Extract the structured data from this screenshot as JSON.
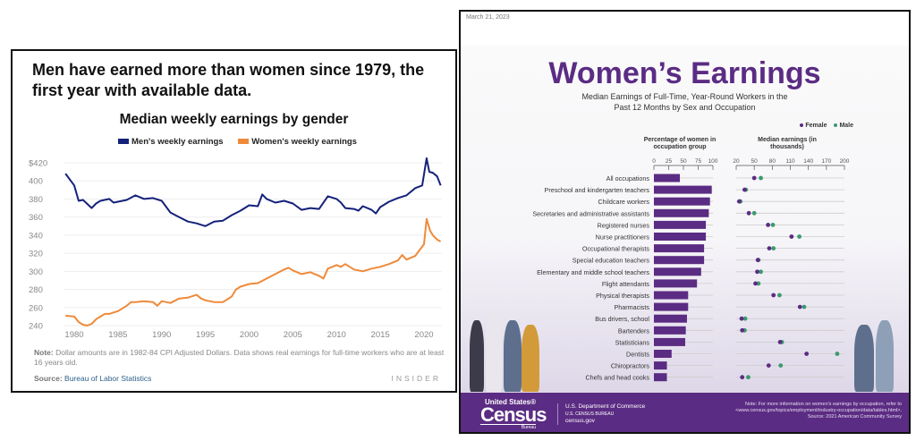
{
  "left_panel": {
    "headline": "Men have earned more than women since 1979, the first year with available data.",
    "note_label": "Note:",
    "note_text": "Dollar amounts are in 1982-84 CPI Adjusted Dollars. Data shows real earnings for full-time workers who are at least 16 years old.",
    "source_label": "Source:",
    "source_text": "Bureau of Labor Statistics",
    "brand": "INSIDER"
  },
  "right_panel": {
    "date": "March 21, 2023",
    "title": "Women’s Earnings",
    "subtitle_line1": "Median Earnings of Full-Time, Year-Round Workers in the",
    "subtitle_line2": "Past 12 Months by Sex and Occupation",
    "footer": {
      "logo_top": "United States®",
      "logo_main": "Census",
      "logo_bottom": "Bureau",
      "dept_line1": "U.S. Department of Commerce",
      "dept_line2": "U.S. CENSUS BUREAU",
      "dept_line3": "census.gov",
      "note": "Note: For more information on women's earnings by occupation, refer to <www.census.gov/topics/employment/industry-occupation/data/tables.html>.",
      "source": "Source: 2021 American Community Survey"
    }
  },
  "colors": {
    "men": "#14217a",
    "women": "#ee8a3a",
    "female": "#5b2c83",
    "male": "#3a9a6e",
    "bar": "#5b2c83"
  },
  "chart_data": [
    {
      "type": "line",
      "title": "Median weekly earnings by gender",
      "xlabel": "",
      "ylabel": "",
      "xlim": [
        1979,
        2022
      ],
      "ylim": [
        235,
        425
      ],
      "xticks": [
        1980,
        1985,
        1990,
        1995,
        2000,
        2005,
        2010,
        2015,
        2020
      ],
      "yticks": [
        240,
        260,
        280,
        300,
        320,
        340,
        360,
        380,
        400,
        420
      ],
      "ytick_labels": [
        "240",
        "260",
        "280",
        "300",
        "320",
        "340",
        "360",
        "380",
        "400",
        "$420"
      ],
      "grid": true,
      "legend": "top",
      "series": [
        {
          "name": "Men's weekly earnings",
          "x": [
            1979,
            1980,
            1980.5,
            1981,
            1982,
            1982.5,
            1983,
            1984,
            1984.5,
            1985,
            1986,
            1987,
            1988,
            1989,
            1990,
            1991,
            1992,
            1993,
            1994,
            1995,
            1996,
            1997,
            1998,
            1999,
            2000,
            2001,
            2001.5,
            2002,
            2003,
            2004,
            2005,
            2006,
            2007,
            2008,
            2009,
            2010,
            2010.5,
            2011,
            2012,
            2012.5,
            2013,
            2014,
            2014.5,
            2015,
            2016,
            2017,
            2018,
            2019,
            2019.8,
            2020.3,
            2020.6,
            2021,
            2021.5,
            2021.9
          ],
          "y": [
            408,
            395,
            378,
            379,
            370,
            375,
            378,
            380,
            376,
            377,
            379,
            384,
            380,
            381,
            378,
            365,
            360,
            355,
            353,
            350,
            355,
            356,
            362,
            367,
            373,
            372,
            385,
            380,
            376,
            378,
            375,
            368,
            370,
            369,
            383,
            380,
            376,
            370,
            369,
            367,
            372,
            368,
            364,
            371,
            377,
            381,
            384,
            392,
            395,
            425,
            410,
            409,
            405,
            395
          ]
        },
        {
          "name": "Women's weekly earnings",
          "x": [
            1979,
            1980,
            1980.5,
            1981,
            1981.5,
            1982,
            1982.5,
            1983,
            1983.5,
            1984,
            1985,
            1985.5,
            1986,
            1986.5,
            1987,
            1988,
            1989,
            1989.5,
            1990,
            1991,
            1992,
            1993,
            1994,
            1994.5,
            1995,
            1996,
            1997,
            1998,
            1998.5,
            1999,
            2000,
            2001,
            2002,
            2003,
            2004,
            2004.5,
            2005,
            2006,
            2007,
            2008,
            2008.5,
            2009,
            2010,
            2010.5,
            2011,
            2012,
            2013,
            2014,
            2015,
            2016,
            2017,
            2017.5,
            2018,
            2019,
            2020,
            2020.3,
            2020.7,
            2021,
            2021.5,
            2021.9
          ],
          "y": [
            251,
            250,
            244,
            241,
            240,
            242,
            247,
            250,
            253,
            253,
            256,
            259,
            262,
            266,
            266,
            267,
            266,
            262,
            267,
            265,
            270,
            271,
            274,
            270,
            268,
            266,
            266,
            272,
            280,
            283,
            286,
            287,
            292,
            297,
            302,
            304,
            301,
            297,
            299,
            295,
            292,
            303,
            307,
            305,
            308,
            302,
            300,
            303,
            305,
            308,
            312,
            318,
            313,
            317,
            330,
            358,
            345,
            340,
            335,
            333
          ]
        }
      ]
    },
    {
      "type": "bar",
      "title": "Percentage of women in occupation group",
      "xlim": [
        0,
        100
      ],
      "xticks": [
        0,
        25,
        50,
        75,
        100
      ],
      "categories": [
        "All occupations",
        "Preschool and kindergarten teachers",
        "Childcare workers",
        "Secretaries and administrative assistants",
        "Registered nurses",
        "Nurse practitioners",
        "Occupational therapists",
        "Special education teachers",
        "Elementary and middle school teachers",
        "Flight attendants",
        "Physical therapists",
        "Pharmacists",
        "Bus drivers, school",
        "Bartenders",
        "Statisticians",
        "Dentists",
        "Chiropractors",
        "Chefs and head cooks"
      ],
      "values": [
        44,
        98,
        95,
        93,
        88,
        88,
        85,
        85,
        80,
        73,
        58,
        58,
        56,
        54,
        53,
        30,
        22,
        22
      ]
    },
    {
      "type": "scatter",
      "title": "Median earnings (in thousands)",
      "xlim": [
        20,
        200
      ],
      "xticks": [
        20,
        50,
        80,
        110,
        140,
        170,
        200
      ],
      "legend": "top-right",
      "series": [
        {
          "name": "Female",
          "values": [
            50,
            34,
            25,
            41,
            73,
            112,
            75,
            56,
            55,
            52,
            82,
            126,
            29,
            30,
            93,
            137,
            74,
            30
          ]
        },
        {
          "name": "Male",
          "values": [
            61,
            36,
            27,
            50,
            81,
            125,
            82,
            57,
            61,
            57,
            92,
            133,
            35,
            34,
            96,
            188,
            94,
            40
          ]
        }
      ]
    }
  ]
}
